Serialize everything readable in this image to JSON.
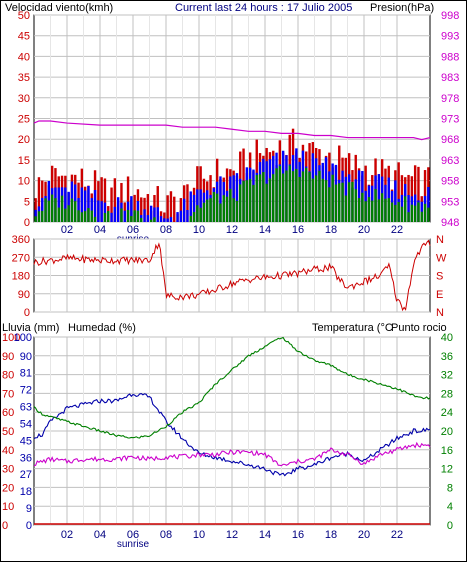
{
  "header": {
    "wind_label": "Velocidad viento(kmh)",
    "center_title": "Current last 24 hours : 17 Julio 2005",
    "pressure_label": "Presion(hPa)"
  },
  "bottom_header": {
    "rain_label": "Lluvia (mm)",
    "humidity_label": "Humedad (%)",
    "temp_label": "Temperatura (°C",
    "dew_label": "Punto rocio"
  },
  "colors": {
    "wind": "#cc0000",
    "pressure": "#cc00cc",
    "humidity": "#0000aa",
    "temp": "#008000",
    "dew": "#cc00cc",
    "grid": "#c0c0c0",
    "hours": "#000080"
  },
  "x_axis": {
    "ticks": [
      "02",
      "04",
      "06",
      "08",
      "10",
      "12",
      "14",
      "16",
      "18",
      "20",
      "22"
    ],
    "sunrise_label": "sunrise",
    "range": [
      0,
      24
    ]
  },
  "chart_data": [
    {
      "type": "line",
      "name": "wind-pressure",
      "left_axis": {
        "label": "Velocidad viento(kmh)",
        "range": [
          0,
          50
        ],
        "ticks": [
          0,
          5,
          10,
          15,
          20,
          25,
          30,
          35,
          40,
          45,
          50
        ]
      },
      "right_axis": {
        "label": "Presion(hPa)",
        "range": [
          948,
          998
        ],
        "ticks": [
          948,
          953,
          958,
          963,
          968,
          973,
          978,
          983,
          988,
          993,
          998
        ]
      },
      "series": [
        {
          "name": "Presion(hPa)",
          "axis": "right",
          "x": [
            0,
            0.3,
            1,
            2,
            4,
            6,
            7,
            8,
            9,
            10,
            11,
            12,
            13,
            14,
            15,
            16,
            17,
            18,
            19,
            20,
            21,
            22,
            23,
            23.5,
            24
          ],
          "values": [
            971.9,
            972.4,
            972.4,
            971.9,
            971.4,
            971.4,
            971.4,
            971.4,
            970.9,
            970.9,
            970.9,
            970.4,
            969.9,
            969.9,
            969.4,
            969.4,
            968.9,
            968.9,
            968.4,
            968.4,
            968.4,
            968.4,
            968.4,
            967.9,
            968.4
          ]
        },
        {
          "name": "Velocidad viento(kmh)",
          "axis": "left",
          "x": [
            0,
            1,
            2,
            3,
            4,
            5,
            6,
            7,
            8,
            9,
            10,
            11,
            12,
            13,
            14,
            15,
            16,
            17,
            18,
            19,
            20,
            21,
            22,
            23,
            24
          ],
          "values": [
            5,
            8,
            8,
            7,
            5,
            4,
            5,
            3,
            1,
            3,
            7,
            9,
            9,
            12,
            14,
            15,
            16,
            14,
            13,
            11,
            10,
            9,
            8,
            7,
            7
          ]
        }
      ]
    },
    {
      "type": "line",
      "name": "wind-direction",
      "left_axis": {
        "range": [
          0,
          360
        ],
        "ticks": [
          0,
          90,
          180,
          270,
          360
        ]
      },
      "right_axis": {
        "labels": [
          "N",
          "W",
          "S",
          "E",
          "N"
        ]
      },
      "series": [
        {
          "name": "Direccion",
          "x": [
            0,
            1,
            2,
            3,
            4,
            5,
            6,
            7,
            7.6,
            8,
            9,
            10,
            11,
            12,
            13,
            14,
            15,
            16,
            17,
            18,
            18.5,
            19,
            20,
            21,
            21.5,
            22,
            22.5,
            23,
            23.5,
            24
          ],
          "values": [
            245,
            255,
            265,
            260,
            255,
            255,
            255,
            255,
            350,
            80,
            75,
            85,
            110,
            140,
            160,
            170,
            180,
            190,
            210,
            220,
            160,
            120,
            150,
            180,
            230,
            60,
            10,
            240,
            320,
            340
          ]
        }
      ]
    },
    {
      "type": "line",
      "name": "rain-humidity-temperature",
      "left_axis": {
        "label": "Lluvia (mm)",
        "range": [
          0,
          100
        ],
        "ticks": [
          0,
          10,
          20,
          30,
          40,
          50,
          60,
          70,
          80,
          90,
          100
        ]
      },
      "left_axis_2": {
        "label": "Humedad (%)",
        "range": [
          0,
          100
        ],
        "ticks": [
          0,
          9,
          18,
          27,
          36,
          45,
          54,
          63,
          72,
          81,
          90,
          100
        ]
      },
      "right_axis": {
        "label": "Temperatura (°C",
        "range": [
          0,
          40
        ],
        "ticks": [
          0,
          4,
          8,
          12,
          16,
          20,
          24,
          28,
          32,
          36,
          40
        ]
      },
      "series": [
        {
          "name": "Humedad (%)",
          "axis": "left",
          "x": [
            0,
            0.5,
            1,
            2,
            3,
            4,
            5,
            6,
            7,
            8,
            9,
            10,
            11,
            12,
            13,
            14,
            15,
            16,
            17,
            18,
            19,
            20,
            21,
            22,
            23,
            23.5,
            24
          ],
          "values": [
            47,
            48,
            55,
            62,
            64,
            66,
            66,
            70,
            68,
            55,
            46,
            38,
            36,
            34,
            32,
            30,
            26,
            30,
            32,
            36,
            38,
            34,
            40,
            46,
            50,
            50,
            51
          ]
        },
        {
          "name": "Temperatura (°C",
          "axis": "right",
          "x": [
            0,
            0.5,
            1,
            2,
            3,
            4,
            5,
            6,
            7,
            8,
            9,
            10,
            11,
            12,
            13,
            14,
            15,
            16,
            17,
            18,
            19,
            20,
            21,
            22,
            23,
            23.5,
            24
          ],
          "values": [
            25,
            23.6,
            23,
            22,
            21,
            20,
            19,
            18.5,
            19,
            21,
            24,
            26,
            30,
            33,
            36,
            38,
            40,
            37,
            35,
            34,
            32,
            31,
            30,
            29,
            27.5,
            27,
            27
          ]
        },
        {
          "name": "Punto rocio",
          "axis": "right",
          "x": [
            0,
            1,
            2,
            3,
            4,
            5,
            6,
            7,
            8,
            9,
            10,
            11,
            12,
            13,
            14,
            15,
            16,
            17,
            18,
            19,
            20,
            21,
            22,
            23,
            24
          ],
          "values": [
            13,
            14,
            13.5,
            14,
            14,
            14,
            14.5,
            14,
            14.5,
            14.5,
            15,
            15,
            15.5,
            15.5,
            15,
            12.5,
            13.5,
            14,
            16,
            15,
            13,
            15,
            16,
            17,
            17
          ]
        },
        {
          "name": "Lluvia (mm)",
          "axis": "left",
          "x": [
            0,
            24
          ],
          "values": [
            0,
            0
          ]
        }
      ]
    }
  ]
}
